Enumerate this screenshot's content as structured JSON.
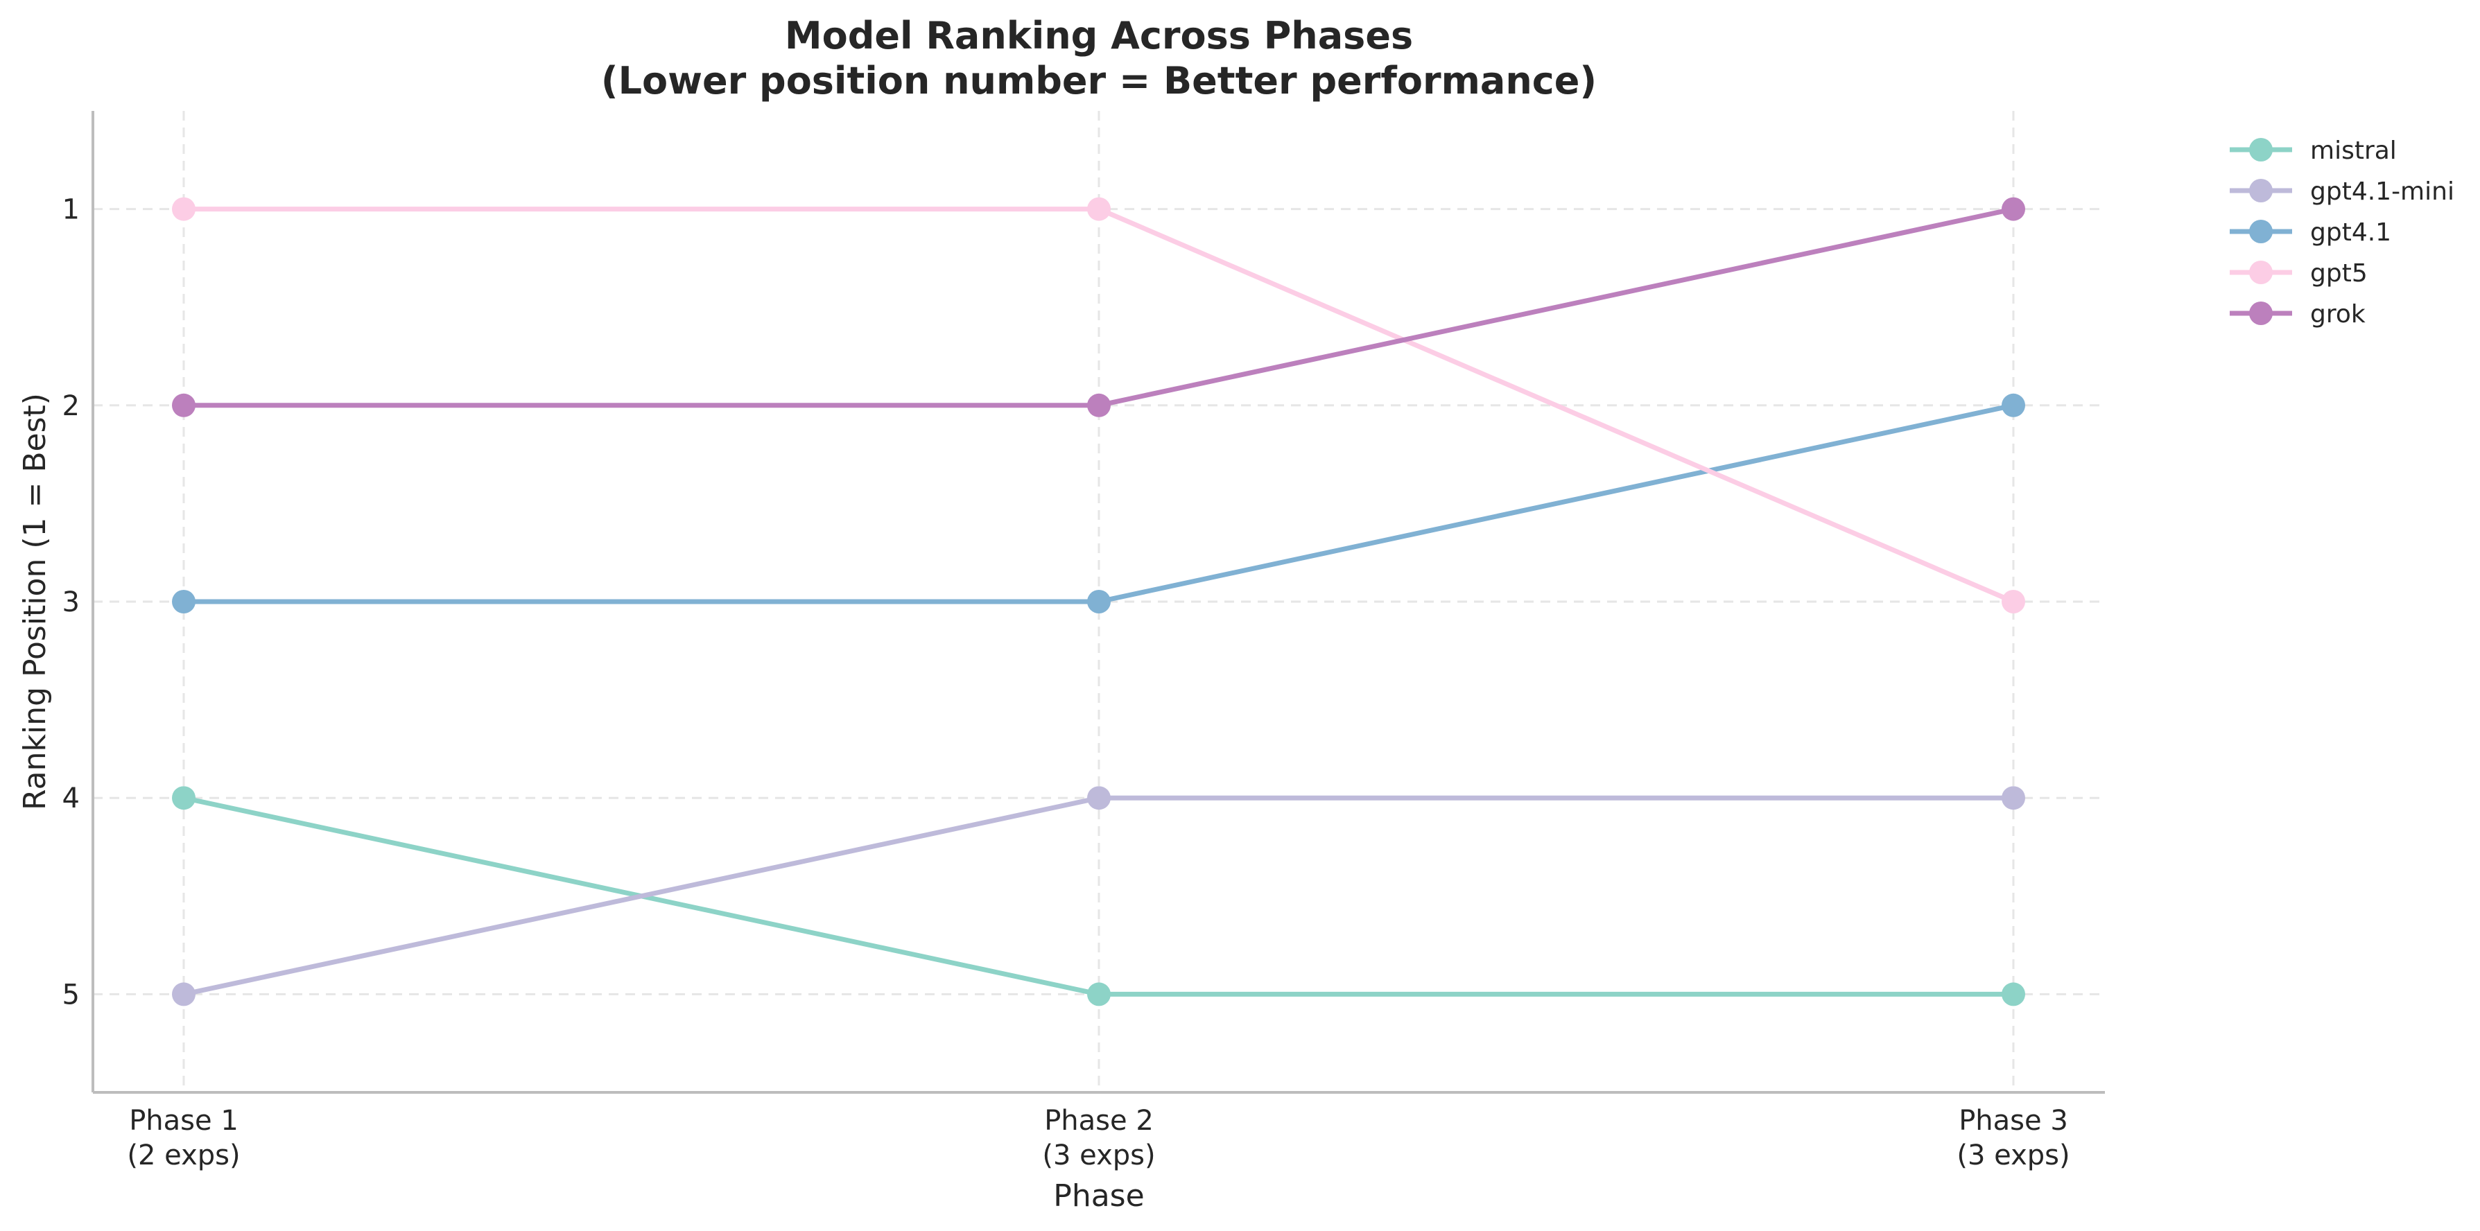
{
  "chart_data": {
    "type": "line",
    "title_lines": [
      "Model Ranking Across Phases",
      "(Lower position number = Better performance)"
    ],
    "xlabel": "Phase",
    "ylabel": "Ranking Position (1 = Best)",
    "categories": [
      [
        "Phase 1",
        "(2 exps)"
      ],
      [
        "Phase 2",
        "(3 exps)"
      ],
      [
        "Phase 3",
        "(3 exps)"
      ]
    ],
    "yticks": [
      1,
      2,
      3,
      4,
      5
    ],
    "ylim": [
      0.5,
      5.5
    ],
    "y_inverted": true,
    "grid": true,
    "legend_position": "outside-top-right",
    "series": [
      {
        "name": "mistral",
        "color": "#8dd3c7",
        "values": [
          4,
          5,
          5
        ]
      },
      {
        "name": "gpt4.1-mini",
        "color": "#bebada",
        "values": [
          5,
          4,
          4
        ]
      },
      {
        "name": "gpt4.1",
        "color": "#80b1d3",
        "values": [
          3,
          3,
          2
        ]
      },
      {
        "name": "gpt5",
        "color": "#fccde5",
        "values": [
          1,
          1,
          3
        ]
      },
      {
        "name": "grok",
        "color": "#bc80bd",
        "values": [
          2,
          2,
          1
        ]
      }
    ]
  }
}
